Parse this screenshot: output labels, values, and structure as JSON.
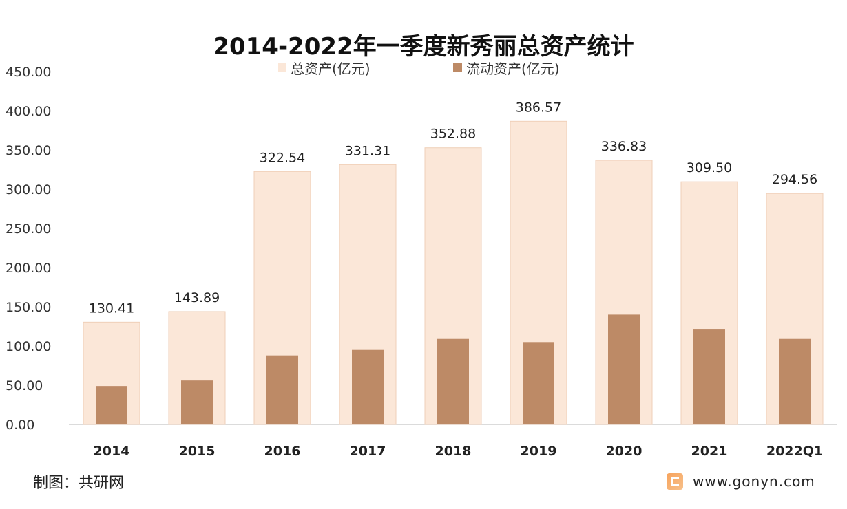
{
  "chart_data": {
    "type": "bar",
    "title": "2014-2022年一季度新秀丽总资产统计",
    "categories": [
      "2014",
      "2015",
      "2016",
      "2017",
      "2018",
      "2019",
      "2020",
      "2021",
      "2022Q1"
    ],
    "series": [
      {
        "name": "总资产(亿元)",
        "values": [
          130.41,
          143.89,
          322.54,
          331.31,
          352.88,
          386.57,
          336.83,
          309.5,
          294.56
        ],
        "color": "#fbe7d8",
        "labels": [
          "130.41",
          "143.89",
          "322.54",
          "331.31",
          "352.88",
          "386.57",
          "336.83",
          "309.50",
          "294.56"
        ]
      },
      {
        "name": "流动资产(亿元)",
        "values": [
          49,
          56,
          88,
          95,
          109,
          105,
          140,
          121,
          109
        ],
        "color": "#bd8a66"
      }
    ],
    "ylim": [
      0,
      450
    ],
    "yticks": [
      "0.00",
      "50.00",
      "100.00",
      "150.00",
      "200.00",
      "250.00",
      "300.00",
      "350.00",
      "400.00",
      "450.00"
    ],
    "grid": false,
    "legend": "top-center",
    "xlabel": "",
    "ylabel": ""
  },
  "footer": {
    "source": "制图：共研网",
    "website": "www.gonyn.com"
  }
}
